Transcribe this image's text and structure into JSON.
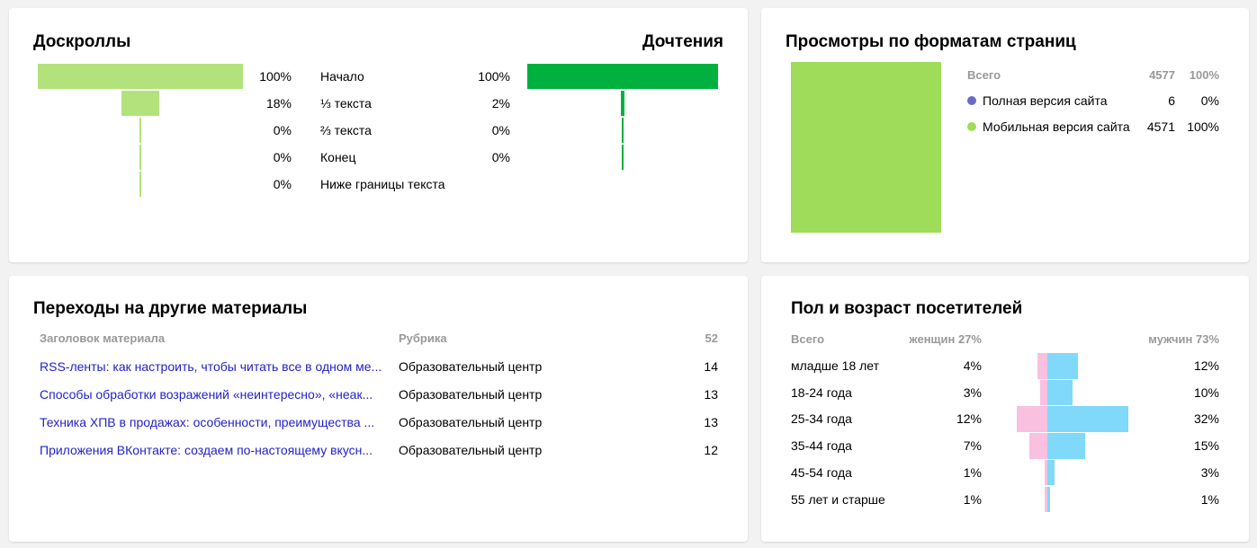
{
  "scroll": {
    "title": "Доскроллы",
    "read_title": "Дочтения",
    "rows": [
      {
        "label": "Начало",
        "scroll_pct": "100%",
        "read_pct": "100%",
        "scroll_value": 100,
        "read_value": 100
      },
      {
        "label": "⅓ текста",
        "scroll_pct": "18%",
        "read_pct": "2%",
        "scroll_value": 18,
        "read_value": 2
      },
      {
        "label": "⅔ текста",
        "scroll_pct": "0%",
        "read_pct": "0%",
        "scroll_value": 0,
        "read_value": 0
      },
      {
        "label": "Конец",
        "scroll_pct": "0%",
        "read_pct": "0%",
        "scroll_value": 0,
        "read_value": 0
      },
      {
        "label": "Ниже границы текста",
        "scroll_pct": "0%",
        "read_pct": "",
        "scroll_value": 0,
        "read_value": null
      }
    ],
    "colors": {
      "scroll": "#b3e27c",
      "read": "#00b140"
    }
  },
  "formats": {
    "title": "Просмотры по форматам страниц",
    "total_label": "Всего",
    "total_count": "4577",
    "total_pct": "100%",
    "items": [
      {
        "label": "Полная версия сайта",
        "count": "6",
        "pct": "0%",
        "color": "#6b6bc7",
        "value": 0
      },
      {
        "label": "Мобильная версия сайта",
        "count": "4571",
        "pct": "100%",
        "color": "#9fdc5a",
        "value": 100
      }
    ]
  },
  "transitions": {
    "title": "Переходы на другие материалы",
    "col_title": "Заголовок материала",
    "col_rubric": "Рубрика",
    "total": "52",
    "rows": [
      {
        "title": "RSS-ленты: как настроить, чтобы читать все в одном ме...",
        "rubric": "Образовательный центр",
        "count": "14"
      },
      {
        "title": "Способы обработки возражений «неинтересно», «неак...",
        "rubric": "Образовательный центр",
        "count": "13"
      },
      {
        "title": "Техника ХПВ в продажах: особенности, преимущества ...",
        "rubric": "Образовательный центр",
        "count": "13"
      },
      {
        "title": "Приложения ВКонтакте: создаем по-настоящему вкусн...",
        "rubric": "Образовательный центр",
        "count": "12"
      }
    ]
  },
  "demographics": {
    "title": "Пол и возраст посетителей",
    "total_label": "Всего",
    "women_label": "женщин 27%",
    "men_label": "мужчин 73%",
    "colors": {
      "women": "#f9c0e0",
      "men": "#80d8fa"
    },
    "rows": [
      {
        "age": "младше 18 лет",
        "women_pct": "4%",
        "men_pct": "12%",
        "women": 4,
        "men": 12
      },
      {
        "age": "18-24 года",
        "women_pct": "3%",
        "men_pct": "10%",
        "women": 3,
        "men": 10
      },
      {
        "age": "25-34 года",
        "women_pct": "12%",
        "men_pct": "32%",
        "women": 12,
        "men": 32
      },
      {
        "age": "35-44 года",
        "women_pct": "7%",
        "men_pct": "15%",
        "women": 7,
        "men": 15
      },
      {
        "age": "45-54 года",
        "women_pct": "1%",
        "men_pct": "3%",
        "women": 1,
        "men": 3
      },
      {
        "age": "55 лет и старше",
        "women_pct": "1%",
        "men_pct": "1%",
        "women": 1,
        "men": 1
      }
    ]
  }
}
